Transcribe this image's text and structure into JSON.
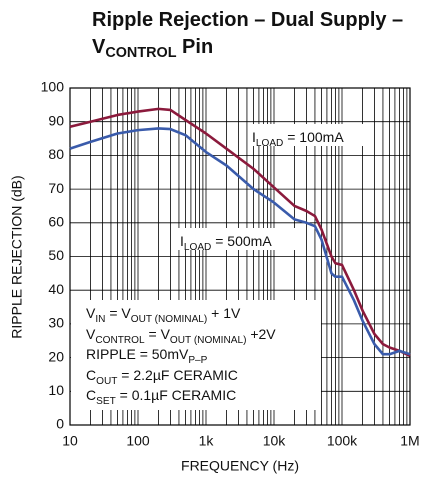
{
  "chart_data": {
    "type": "line",
    "title": [
      [
        {
          "text": "Ripple Rejection – Dual Supply –",
          "sub": false
        }
      ],
      [
        {
          "text": "V",
          "sub": false
        },
        {
          "text": "CONTROL",
          "sub": true
        },
        {
          "text": " Pin",
          "sub": false
        }
      ]
    ],
    "xlabel": "FREQUENCY (Hz)",
    "ylabel": "RIPPLE REJECTION (dB)",
    "xscale": "log",
    "grid": true,
    "xlim": [
      10,
      1000000
    ],
    "ylim": [
      0,
      100
    ],
    "xticks": [
      10,
      100,
      {
        "value": 1000,
        "label": "1k"
      },
      {
        "value": 10000,
        "label": "10k"
      },
      {
        "value": 100000,
        "label": "100k"
      },
      {
        "value": 1000000,
        "label": "1M"
      }
    ],
    "x_minor_grid": [
      20,
      30,
      40,
      50,
      60,
      70,
      80,
      90,
      200,
      300,
      400,
      500,
      600,
      700,
      800,
      900,
      2000,
      3000,
      4000,
      5000,
      6000,
      7000,
      8000,
      9000,
      20000,
      30000,
      40000,
      50000,
      60000,
      70000,
      80000,
      90000,
      200000,
      300000,
      400000,
      500000,
      600000,
      700000,
      800000,
      900000
    ],
    "yticks": [
      0,
      10,
      20,
      30,
      40,
      50,
      60,
      70,
      80,
      90,
      100
    ],
    "x": [
      10,
      20,
      50,
      100,
      200,
      300,
      500,
      1000,
      2000,
      5000,
      10000,
      20000,
      30000,
      40000,
      50000,
      70000,
      80000,
      100000,
      150000,
      200000,
      300000,
      400000,
      500000,
      700000,
      1000000
    ],
    "series": [
      {
        "name": "100mA",
        "color": "#8b1a3c",
        "values": [
          88.5,
          90,
          92,
          93,
          93.8,
          93.5,
          90.5,
          86.5,
          82,
          76,
          70.5,
          65,
          63.5,
          62,
          58,
          50,
          48,
          47.5,
          40,
          34,
          27,
          24,
          23,
          22,
          20.5
        ]
      },
      {
        "name": "500mA",
        "color": "#3a5bab",
        "values": [
          82,
          84,
          86.5,
          87.5,
          88,
          87.8,
          86,
          81,
          77,
          70,
          66,
          61,
          60,
          59,
          55,
          45,
          44,
          44,
          37,
          31,
          24,
          21,
          21,
          22,
          21
        ]
      }
    ],
    "annotations": [
      [
        {
          "text": "I",
          "sub": false
        },
        {
          "text": "LOAD",
          "sub": true
        },
        {
          "text": " = 100mA",
          "sub": false
        }
      ],
      [
        {
          "text": "I",
          "sub": false
        },
        {
          "text": "LOAD",
          "sub": true
        },
        {
          "text": " = 500mA",
          "sub": false
        }
      ],
      [
        {
          "text": "V",
          "sub": false
        },
        {
          "text": "IN",
          "sub": true
        },
        {
          "text": " = V",
          "sub": false
        },
        {
          "text": "OUT (NOMINAL)",
          "sub": true
        },
        {
          "text": " + 1V",
          "sub": false
        }
      ],
      [
        {
          "text": "V",
          "sub": false
        },
        {
          "text": "CONTROL",
          "sub": true
        },
        {
          "text": " = V",
          "sub": false
        },
        {
          "text": "OUT (NOMINAL)",
          "sub": true
        },
        {
          "text": " +2V",
          "sub": false
        }
      ],
      [
        {
          "text": "RIPPLE = 50mV",
          "sub": false
        },
        {
          "text": "P–P",
          "sub": true
        }
      ],
      [
        {
          "text": "C",
          "sub": false
        },
        {
          "text": "OUT",
          "sub": true
        },
        {
          "text": " = 2.2µF CERAMIC",
          "sub": false
        }
      ],
      [
        {
          "text": "C",
          "sub": false
        },
        {
          "text": "SET",
          "sub": true
        },
        {
          "text": " = 0.1µF CERAMIC",
          "sub": false
        }
      ]
    ]
  }
}
